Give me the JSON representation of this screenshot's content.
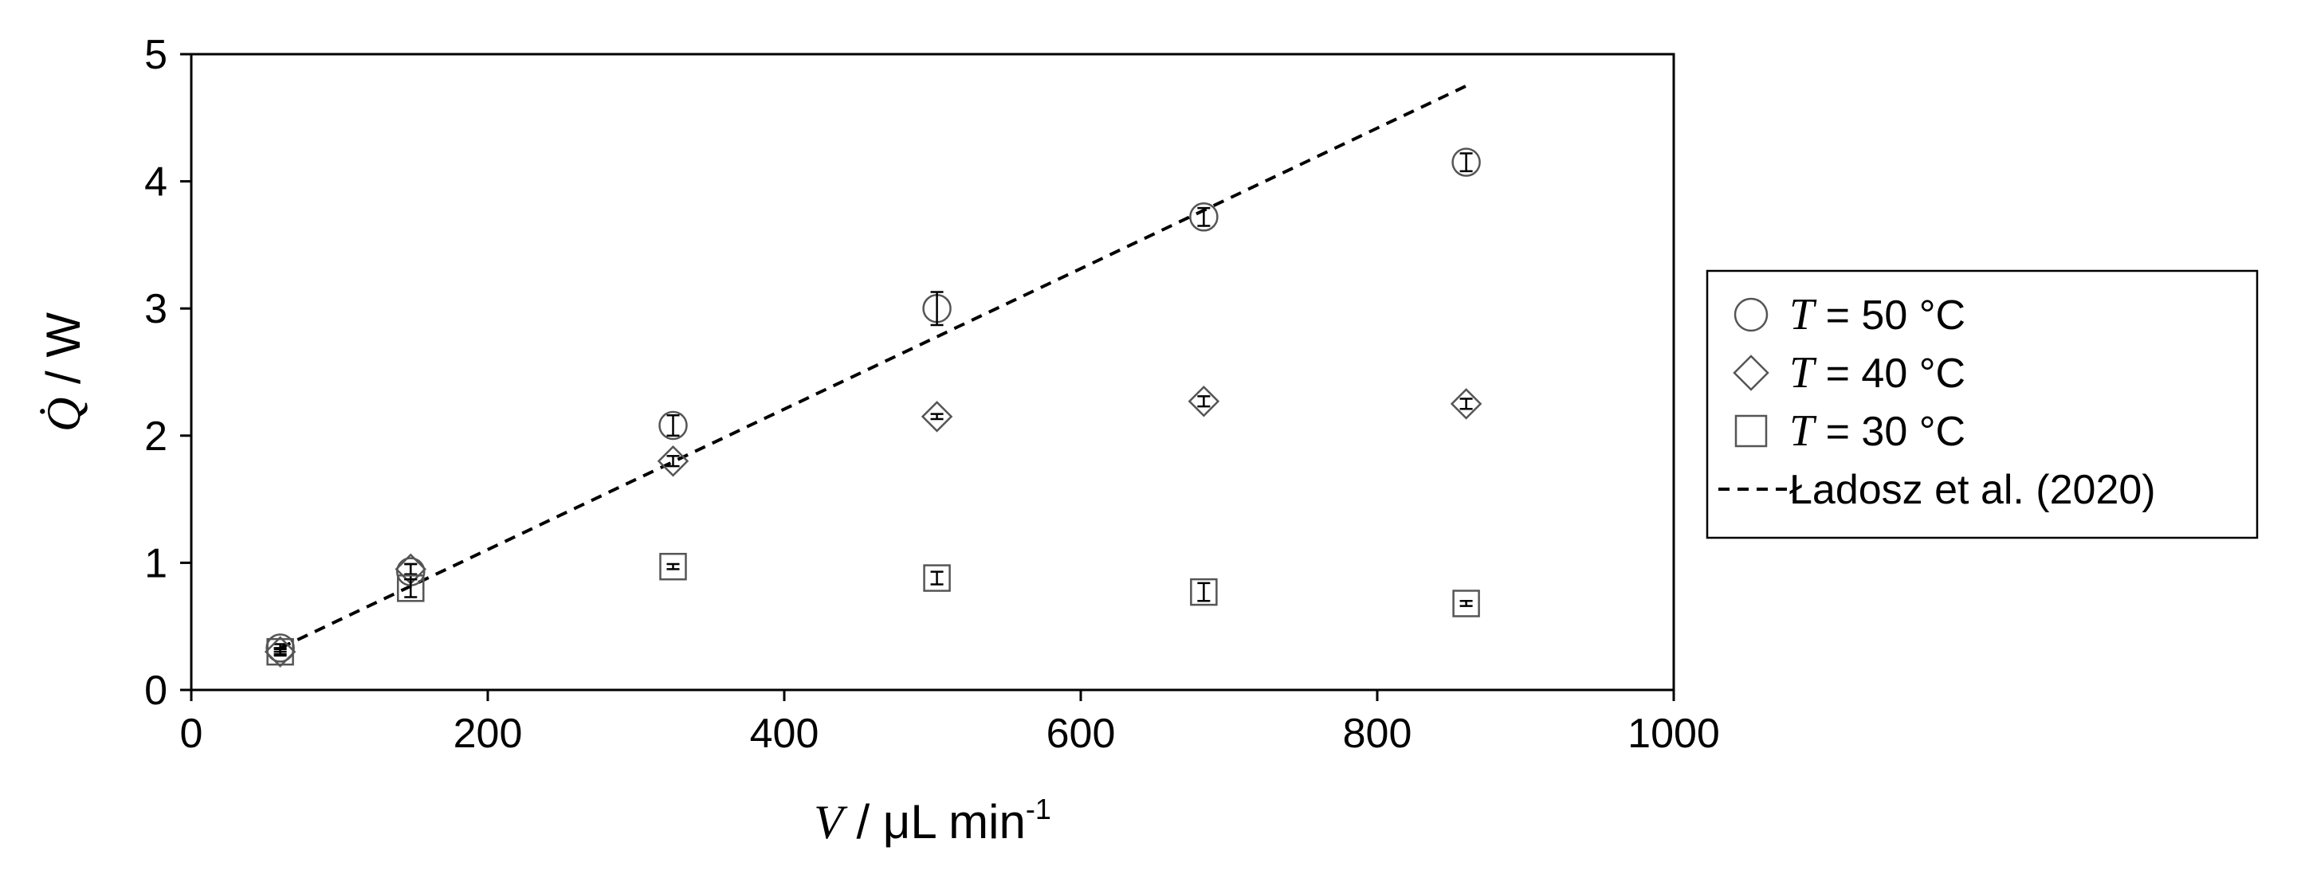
{
  "chart_data": {
    "type": "scatter",
    "xlabel": {
      "var": "V",
      "rest": " / μL min",
      "sup": "-1"
    },
    "ylabel": {
      "var": "Q̇",
      "rest": " / W"
    },
    "xlim": [
      0,
      1000
    ],
    "ylim": [
      0,
      5
    ],
    "xticks": [
      "0",
      "200",
      "400",
      "600",
      "800",
      "1000"
    ],
    "yticks": [
      "0",
      "1",
      "2",
      "3",
      "4",
      "5"
    ],
    "grid": false,
    "legend_position": "right",
    "series": [
      {
        "name": {
          "var": "T",
          "rest": " = 50 °C"
        },
        "marker": "circle",
        "x": [
          60,
          148,
          325,
          503,
          683,
          860
        ],
        "y": [
          0.33,
          0.93,
          2.08,
          3.0,
          3.72,
          4.15
        ],
        "err": [
          0.03,
          0.06,
          0.08,
          0.13,
          0.07,
          0.07
        ]
      },
      {
        "name": {
          "var": "T",
          "rest": " = 40 °C"
        },
        "marker": "diamond",
        "x": [
          60,
          148,
          325,
          503,
          683,
          860
        ],
        "y": [
          0.3,
          0.95,
          1.8,
          2.15,
          2.27,
          2.25
        ],
        "err": [
          0.03,
          0.04,
          0.04,
          0.02,
          0.04,
          0.04
        ]
      },
      {
        "name": {
          "var": "T",
          "rest": " = 30 °C"
        },
        "marker": "square",
        "x": [
          60,
          148,
          325,
          503,
          683,
          860
        ],
        "y": [
          0.3,
          0.8,
          0.97,
          0.88,
          0.77,
          0.68
        ],
        "err": [
          0.02,
          0.07,
          0.02,
          0.05,
          0.07,
          0.02
        ]
      }
    ],
    "reference_line": {
      "name": "Ładosz et al. (2020)",
      "style": "dashed",
      "x": [
        60,
        860
      ],
      "y": [
        0.33,
        4.75
      ]
    }
  }
}
